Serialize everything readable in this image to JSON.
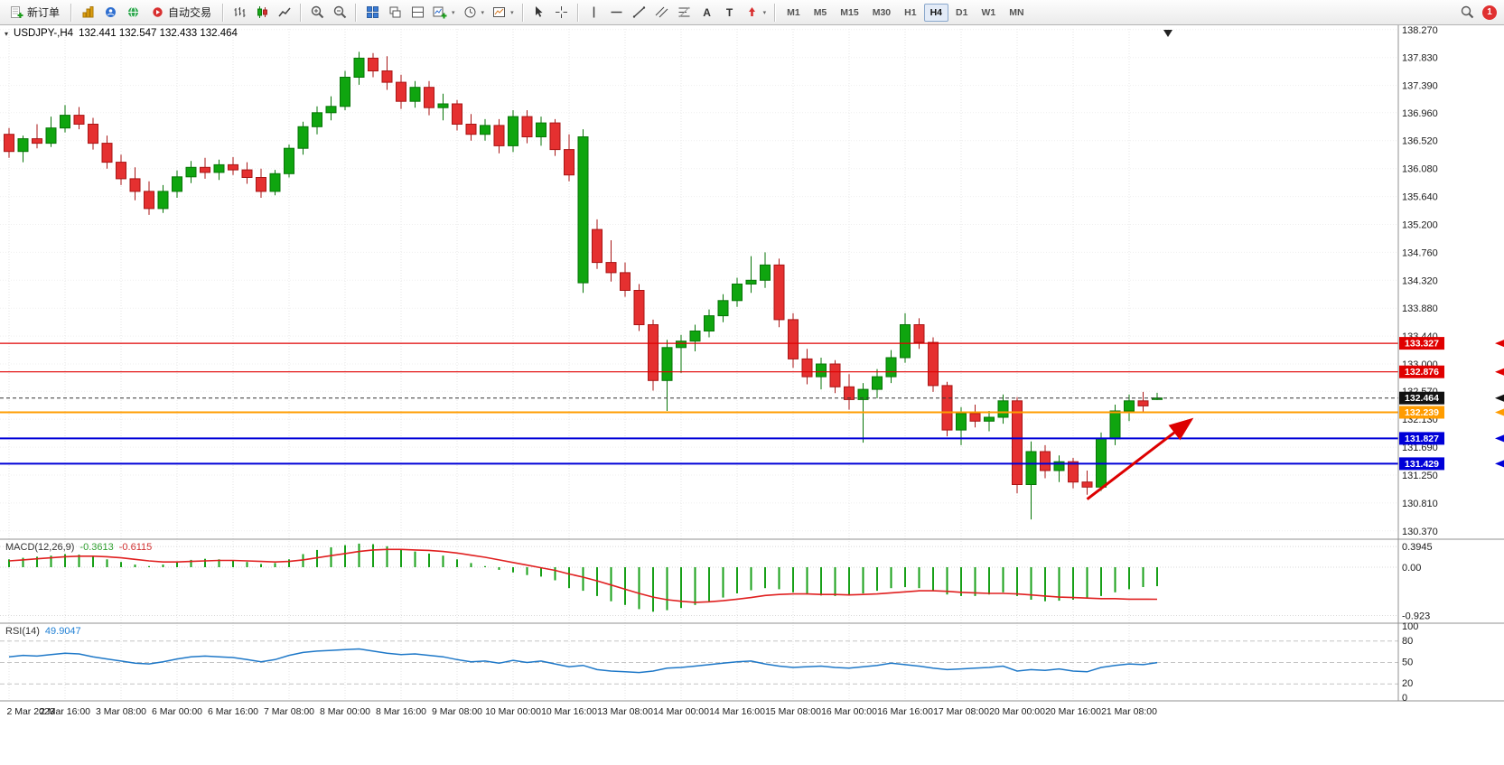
{
  "toolbar": {
    "new_order": "新订单",
    "autotrading": "自动交易",
    "timeframes": [
      "M1",
      "M5",
      "M15",
      "M30",
      "H1",
      "H4",
      "D1",
      "W1",
      "MN"
    ],
    "active_timeframe": "H4",
    "text_tool": "A",
    "label_tool": "T",
    "notification_count": "1"
  },
  "chart": {
    "symbol_period": "USDJPY-,H4",
    "ohlc_text": "132.441 132.547 132.433 132.464"
  },
  "panes": {
    "macd_name": "MACD(12,26,9)",
    "macd_value": "-0.3613",
    "macd_signal": "-0.6115",
    "rsi_name": "RSI(14)",
    "rsi_value": "49.9047"
  },
  "chart_data": {
    "type": "candlestick",
    "symbol": "USDJPY",
    "period": "H4",
    "price_axis": [
      "138.270",
      "137.830",
      "137.390",
      "136.960",
      "136.520",
      "136.080",
      "135.640",
      "135.200",
      "134.760",
      "134.320",
      "133.880",
      "133.440",
      "133.000",
      "132.570",
      "132.130",
      "131.690",
      "131.250",
      "130.810",
      "130.370"
    ],
    "time_labels": [
      "2 Mar 2023",
      "2 Mar 16:00",
      "3 Mar 08:00",
      "6 Mar 00:00",
      "6 Mar 16:00",
      "7 Mar 08:00",
      "8 Mar 00:00",
      "8 Mar 16:00",
      "9 Mar 08:00",
      "10 Mar 00:00",
      "10 Mar 16:00",
      "13 Mar 08:00",
      "14 Mar 00:00",
      "14 Mar 16:00",
      "15 Mar 08:00",
      "16 Mar 00:00",
      "16 Mar 16:00",
      "17 Mar 08:00",
      "20 Mar 00:00",
      "20 Mar 16:00",
      "21 Mar 08:00"
    ],
    "candles": [
      [
        136.62,
        136.72,
        136.25,
        136.35
      ],
      [
        136.35,
        136.6,
        136.18,
        136.55
      ],
      [
        136.55,
        136.78,
        136.4,
        136.48
      ],
      [
        136.48,
        136.9,
        136.42,
        136.72
      ],
      [
        136.72,
        137.08,
        136.65,
        136.92
      ],
      [
        136.92,
        137.05,
        136.7,
        136.78
      ],
      [
        136.78,
        136.88,
        136.38,
        136.48
      ],
      [
        136.48,
        136.6,
        136.08,
        136.18
      ],
      [
        136.18,
        136.3,
        135.82,
        135.92
      ],
      [
        135.92,
        136.1,
        135.58,
        135.72
      ],
      [
        135.72,
        135.88,
        135.35,
        135.45
      ],
      [
        135.45,
        135.82,
        135.38,
        135.72
      ],
      [
        135.72,
        136.05,
        135.62,
        135.95
      ],
      [
        135.95,
        136.2,
        135.85,
        136.1
      ],
      [
        136.1,
        136.25,
        135.92,
        136.02
      ],
      [
        136.02,
        136.22,
        135.9,
        136.14
      ],
      [
        136.14,
        136.26,
        135.98,
        136.06
      ],
      [
        136.06,
        136.18,
        135.84,
        135.94
      ],
      [
        135.94,
        136.08,
        135.62,
        135.72
      ],
      [
        135.72,
        136.06,
        135.66,
        136.0
      ],
      [
        136.0,
        136.46,
        135.94,
        136.4
      ],
      [
        136.4,
        136.82,
        136.3,
        136.74
      ],
      [
        136.74,
        137.06,
        136.62,
        136.96
      ],
      [
        136.96,
        137.22,
        136.84,
        137.06
      ],
      [
        137.06,
        137.62,
        137.0,
        137.52
      ],
      [
        137.52,
        137.92,
        137.4,
        137.82
      ],
      [
        137.82,
        137.9,
        137.52,
        137.62
      ],
      [
        137.62,
        137.85,
        137.32,
        137.44
      ],
      [
        137.44,
        137.56,
        137.02,
        137.14
      ],
      [
        137.14,
        137.46,
        137.04,
        137.36
      ],
      [
        137.36,
        137.46,
        136.92,
        137.04
      ],
      [
        137.04,
        137.26,
        136.84,
        137.1
      ],
      [
        137.1,
        137.16,
        136.68,
        136.78
      ],
      [
        136.78,
        136.94,
        136.52,
        136.62
      ],
      [
        136.62,
        136.86,
        136.52,
        136.76
      ],
      [
        136.76,
        136.86,
        136.32,
        136.44
      ],
      [
        136.44,
        137.0,
        136.34,
        136.9
      ],
      [
        136.9,
        137.0,
        136.48,
        136.58
      ],
      [
        136.58,
        136.9,
        136.44,
        136.8
      ],
      [
        136.8,
        136.86,
        136.28,
        136.38
      ],
      [
        136.38,
        136.62,
        135.88,
        135.98
      ],
      [
        134.28,
        136.7,
        134.12,
        136.58
      ],
      [
        135.12,
        135.28,
        134.5,
        134.6
      ],
      [
        134.6,
        134.95,
        134.3,
        134.44
      ],
      [
        134.44,
        134.6,
        134.06,
        134.16
      ],
      [
        134.16,
        134.26,
        133.52,
        133.62
      ],
      [
        133.62,
        133.7,
        132.58,
        132.74
      ],
      [
        132.74,
        133.38,
        132.26,
        133.26
      ],
      [
        133.26,
        133.46,
        132.86,
        133.36
      ],
      [
        133.36,
        133.62,
        133.2,
        133.52
      ],
      [
        133.52,
        133.86,
        133.42,
        133.76
      ],
      [
        133.76,
        134.1,
        133.66,
        134.0
      ],
      [
        134.0,
        134.36,
        133.9,
        134.26
      ],
      [
        134.26,
        134.7,
        134.12,
        134.32
      ],
      [
        134.32,
        134.76,
        134.2,
        134.56
      ],
      [
        134.56,
        134.66,
        133.58,
        133.7
      ],
      [
        133.7,
        133.8,
        132.94,
        133.08
      ],
      [
        133.08,
        133.24,
        132.68,
        132.8
      ],
      [
        132.8,
        133.1,
        132.6,
        133.0
      ],
      [
        133.0,
        133.06,
        132.54,
        132.64
      ],
      [
        132.64,
        132.84,
        132.28,
        132.44
      ],
      [
        132.44,
        132.7,
        131.76,
        132.6
      ],
      [
        132.6,
        132.92,
        132.46,
        132.8
      ],
      [
        132.8,
        133.22,
        132.7,
        133.1
      ],
      [
        133.1,
        133.8,
        133.02,
        133.62
      ],
      [
        133.62,
        133.72,
        133.24,
        133.34
      ],
      [
        133.34,
        133.42,
        132.56,
        132.66
      ],
      [
        132.66,
        132.72,
        131.86,
        131.96
      ],
      [
        131.96,
        132.32,
        131.72,
        132.22
      ],
      [
        132.22,
        132.36,
        132.0,
        132.1
      ],
      [
        132.1,
        132.26,
        131.94,
        132.16
      ],
      [
        132.16,
        132.52,
        132.06,
        132.42
      ],
      [
        132.42,
        132.48,
        130.96,
        131.1
      ],
      [
        131.1,
        131.78,
        130.55,
        131.62
      ],
      [
        131.62,
        131.72,
        131.2,
        131.32
      ],
      [
        131.32,
        131.56,
        131.14,
        131.46
      ],
      [
        131.46,
        131.52,
        131.04,
        131.14
      ],
      [
        131.14,
        131.32,
        130.94,
        131.06
      ],
      [
        131.06,
        131.92,
        131.0,
        131.82
      ],
      [
        131.82,
        132.36,
        131.72,
        132.26
      ],
      [
        132.26,
        132.52,
        132.1,
        132.42
      ],
      [
        132.42,
        132.56,
        132.24,
        132.34
      ],
      [
        132.441,
        132.547,
        132.433,
        132.464
      ]
    ],
    "hlines": [
      {
        "price": 133.327,
        "label": "133.327",
        "color": "#E00000",
        "width": 1.2
      },
      {
        "price": 132.876,
        "label": "132.876",
        "color": "#E00000",
        "width": 1.2
      },
      {
        "price": 132.239,
        "label": "132.239",
        "color": "#FF9C00",
        "width": 2
      },
      {
        "price": 131.827,
        "label": "131.827",
        "color": "#0000D8",
        "width": 2
      },
      {
        "price": 131.429,
        "label": "131.429",
        "color": "#0000D8",
        "width": 2
      }
    ],
    "current_price": {
      "price": 132.464,
      "label": "132.464",
      "color": "#111111"
    },
    "macd": {
      "ticks": [
        "0.3945",
        "0.00",
        "-0.923"
      ],
      "tick_values": [
        0.3945,
        0,
        -0.923
      ],
      "colors": {
        "histogram": "#18A018",
        "signal": "#E02020"
      },
      "histogram": [
        0.15,
        0.18,
        0.2,
        0.22,
        0.25,
        0.24,
        0.2,
        0.15,
        0.1,
        0.05,
        0.02,
        0.05,
        0.1,
        0.14,
        0.16,
        0.15,
        0.13,
        0.1,
        0.06,
        0.08,
        0.15,
        0.25,
        0.33,
        0.38,
        0.42,
        0.45,
        0.44,
        0.4,
        0.34,
        0.3,
        0.26,
        0.22,
        0.15,
        0.08,
        0.02,
        -0.05,
        -0.1,
        -0.15,
        -0.18,
        -0.25,
        -0.4,
        -0.45,
        -0.55,
        -0.65,
        -0.72,
        -0.8,
        -0.85,
        -0.82,
        -0.78,
        -0.72,
        -0.65,
        -0.58,
        -0.5,
        -0.44,
        -0.4,
        -0.42,
        -0.48,
        -0.52,
        -0.54,
        -0.55,
        -0.54,
        -0.5,
        -0.45,
        -0.4,
        -0.38,
        -0.4,
        -0.45,
        -0.52,
        -0.55,
        -0.55,
        -0.52,
        -0.48,
        -0.55,
        -0.62,
        -0.65,
        -0.64,
        -0.62,
        -0.6,
        -0.55,
        -0.48,
        -0.42,
        -0.38,
        -0.3613
      ],
      "signal": [
        0.12,
        0.14,
        0.16,
        0.18,
        0.2,
        0.21,
        0.21,
        0.2,
        0.18,
        0.15,
        0.12,
        0.1,
        0.1,
        0.11,
        0.12,
        0.13,
        0.13,
        0.12,
        0.11,
        0.1,
        0.11,
        0.14,
        0.18,
        0.22,
        0.26,
        0.3,
        0.33,
        0.34,
        0.34,
        0.33,
        0.32,
        0.3,
        0.27,
        0.23,
        0.19,
        0.14,
        0.09,
        0.04,
        -0.01,
        -0.06,
        -0.13,
        -0.19,
        -0.26,
        -0.34,
        -0.42,
        -0.5,
        -0.57,
        -0.62,
        -0.65,
        -0.67,
        -0.66,
        -0.64,
        -0.61,
        -0.58,
        -0.54,
        -0.52,
        -0.51,
        -0.51,
        -0.52,
        -0.52,
        -0.53,
        -0.52,
        -0.51,
        -0.49,
        -0.47,
        -0.45,
        -0.45,
        -0.46,
        -0.48,
        -0.49,
        -0.5,
        -0.5,
        -0.51,
        -0.53,
        -0.55,
        -0.57,
        -0.58,
        -0.59,
        -0.6,
        -0.6,
        -0.61,
        -0.61,
        -0.6115
      ]
    },
    "rsi": {
      "ticks": [
        "100",
        "80",
        "50",
        "20",
        "0"
      ],
      "tick_values": [
        100,
        80,
        50,
        20,
        0
      ],
      "levels": [
        80,
        50,
        20
      ],
      "color": "#1E78C8",
      "values": [
        58,
        60,
        59,
        61,
        63,
        62,
        58,
        55,
        52,
        49,
        48,
        51,
        55,
        58,
        59,
        58,
        57,
        54,
        51,
        54,
        60,
        64,
        66,
        67,
        68,
        69,
        66,
        63,
        61,
        62,
        60,
        58,
        54,
        51,
        52,
        49,
        53,
        50,
        52,
        48,
        44,
        46,
        40,
        38,
        37,
        36,
        38,
        42,
        43,
        45,
        47,
        49,
        51,
        52,
        48,
        45,
        43,
        44,
        45,
        43,
        42,
        44,
        46,
        49,
        47,
        45,
        42,
        40,
        41,
        42,
        43,
        45,
        38,
        40,
        39,
        41,
        38,
        37,
        43,
        46,
        48,
        47,
        49.9
      ]
    },
    "colors": {
      "up": "#0FA50F",
      "down": "#E53030",
      "grid": "#E6E6E6"
    },
    "annotation_arrow": {
      "from_candle": 77,
      "from_price": 130.87,
      "to_candle": 84.3,
      "to_price": 132.1,
      "color": "#DD0000"
    }
  }
}
